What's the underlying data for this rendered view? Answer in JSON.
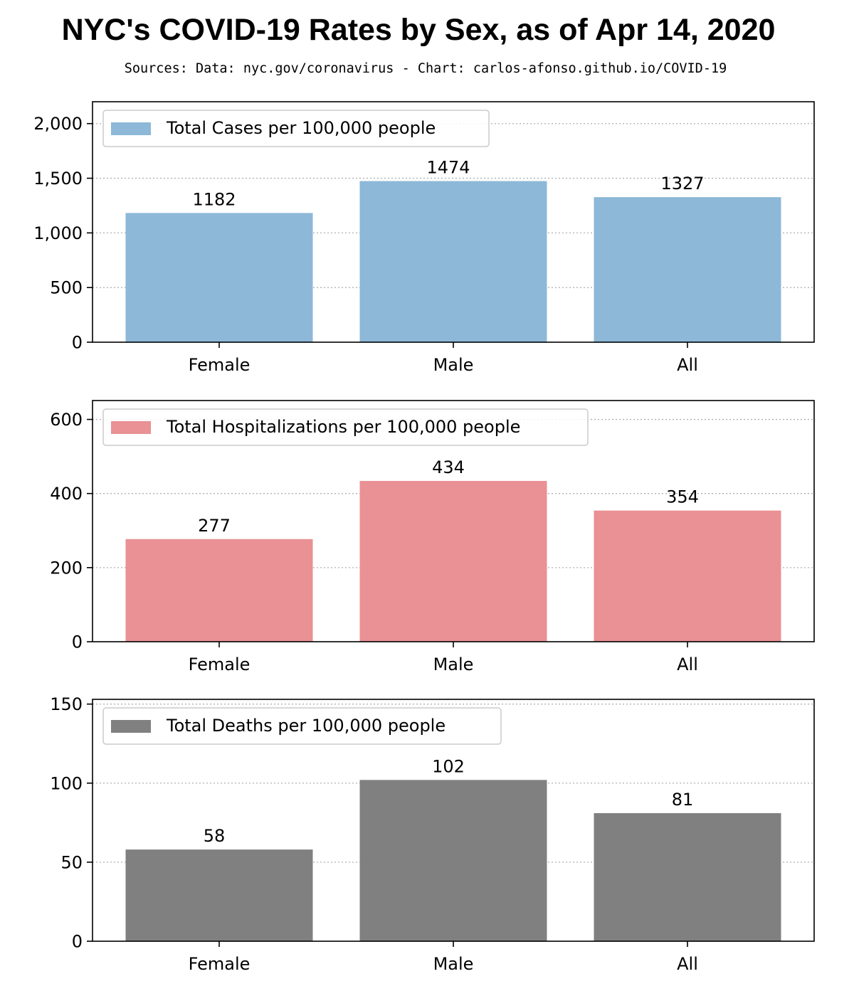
{
  "title": "NYC's COVID-19 Rates by Sex, as of Apr 14, 2020",
  "subtitle": "Sources: Data: nyc.gov/coronavirus - Chart: carlos-afonso.github.io/COVID-19",
  "chart_data": [
    {
      "type": "bar",
      "categories": [
        "Female",
        "Male",
        "All"
      ],
      "series": [
        {
          "name": "Total Cases per 100,000 people",
          "values": [
            1182,
            1474,
            1327
          ]
        }
      ],
      "value_labels": [
        "1182",
        "1474",
        "1327"
      ],
      "color": "#8db8d8",
      "ylim": [
        0,
        2200
      ],
      "yticks": [
        0,
        500,
        1000,
        1500,
        2000
      ],
      "ytick_labels": [
        "0",
        "500",
        "1,000",
        "1,500",
        "2,000"
      ],
      "grid": "y dotted",
      "legend": "upper-left"
    },
    {
      "type": "bar",
      "categories": [
        "Female",
        "Male",
        "All"
      ],
      "series": [
        {
          "name": "Total Hospitalizations per 100,000 people",
          "values": [
            277,
            434,
            354
          ]
        }
      ],
      "value_labels": [
        "277",
        "434",
        "354"
      ],
      "color": "#e99194",
      "ylim": [
        0,
        651
      ],
      "yticks": [
        0,
        200,
        400,
        600
      ],
      "ytick_labels": [
        "0",
        "200",
        "400",
        "600"
      ],
      "grid": "y dotted",
      "legend": "upper-left"
    },
    {
      "type": "bar",
      "categories": [
        "Female",
        "Male",
        "All"
      ],
      "series": [
        {
          "name": "Total Deaths per 100,000 people",
          "values": [
            58,
            102,
            81
          ]
        }
      ],
      "value_labels": [
        "58",
        "102",
        "81"
      ],
      "color": "#808080",
      "ylim": [
        0,
        153
      ],
      "yticks": [
        0,
        50,
        100,
        150
      ],
      "ytick_labels": [
        "0",
        "50",
        "100",
        "150"
      ],
      "grid": "y dotted",
      "legend": "upper-left"
    }
  ]
}
